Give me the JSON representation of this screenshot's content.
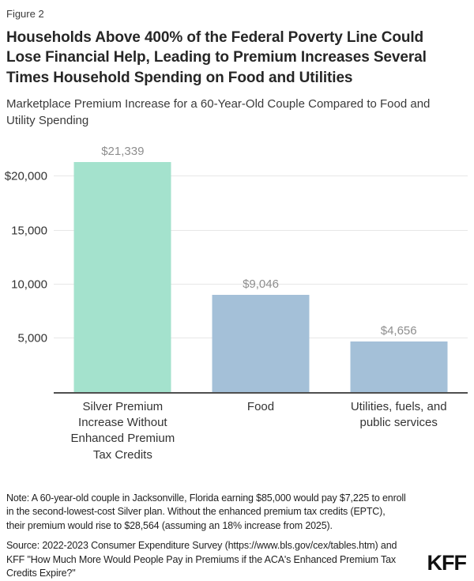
{
  "header": {
    "figure_label": "Figure 2",
    "title": "Households Above 400% of the Federal Poverty Line Could\nLose Financial Help, Leading to Premium Increases Several\nTimes Household Spending on Food and Utilities",
    "subtitle": "Marketplace Premium Increase for a 60-Year-Old Couple Compared to Food and\nUtility Spending"
  },
  "chart_data": {
    "type": "bar",
    "title": "Marketplace Premium Increase for a 60-Year-Old Couple Compared to Food and Utility Spending",
    "categories": [
      "Silver Premium Increase Without Enhanced Premium Tax Credits",
      "Food",
      "Utilities, fuels, and public services"
    ],
    "category_labels": [
      "Silver Premium\nIncrease Without\nEnhanced Premium\nTax Credits",
      "Food",
      "Utilities, fuels, and\npublic services"
    ],
    "values": [
      21339,
      9046,
      4656
    ],
    "value_labels": [
      "$21,339",
      "$9,046",
      "$4,656"
    ],
    "bar_colors": [
      "#a4e2cd",
      "#a4c0d8",
      "#a4c0d8"
    ],
    "yticks": [
      {
        "value": 5000,
        "label": "5,000"
      },
      {
        "value": 10000,
        "label": "10,000"
      },
      {
        "value": 15000,
        "label": "15,000"
      },
      {
        "value": 20000,
        "label": "$20,000"
      }
    ],
    "ylim": [
      0,
      23500
    ],
    "grid": true,
    "legend": false,
    "xlabel": "",
    "ylabel": "",
    "colors": {
      "highlight_bar": "#a4e2cd",
      "comparison_bar": "#a4c0d8",
      "gridline": "#e7e7e7",
      "axis_line": "#4f4f4f",
      "value_label": "#8e8e8e"
    }
  },
  "footer": {
    "note": "Note: A 60-year-old couple in Jacksonville, Florida earning $85,000 would pay $7,225 to enroll\nin the second-lowest-cost Silver plan. Without the enhanced premium tax credits (EPTC),\ntheir premium would rise to $28,564 (assuming an  18% increase from 2025).",
    "source": "Source: 2022-2023 Consumer Expenditure Survey (https://www.bls.gov/cex/tables.htm) and\nKFF \"How Much More Would People Pay in Premiums if the ACA's Enhanced Premium Tax\nCredits Expire?\"",
    "logo": "KFF"
  }
}
